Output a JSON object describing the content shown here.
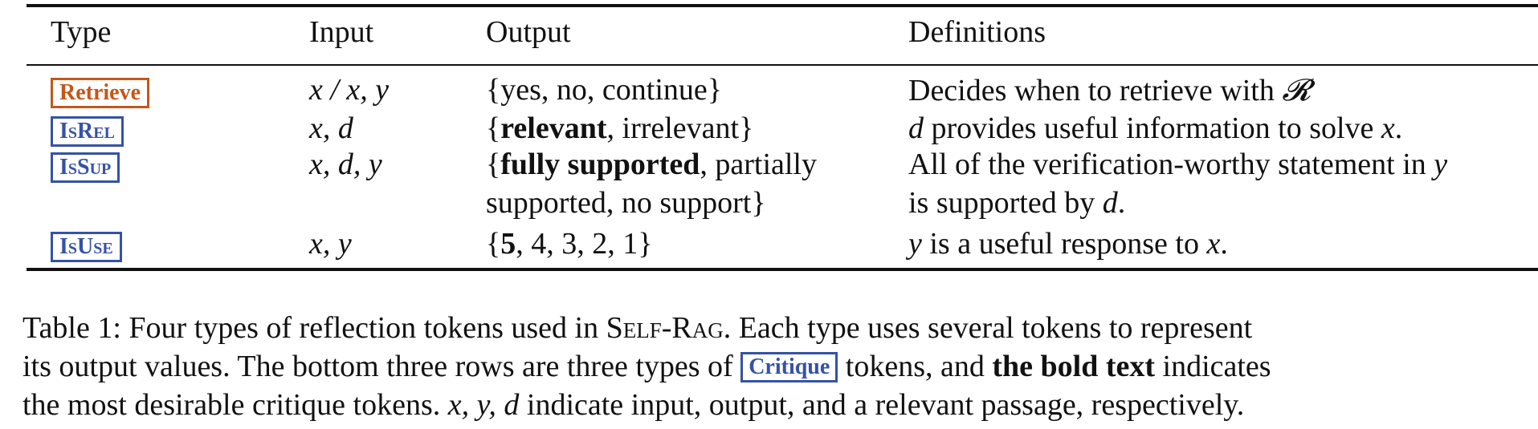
{
  "table": {
    "headers": {
      "type": "Type",
      "input": "Input",
      "output": "Output",
      "definitions": "Definitions"
    },
    "rows": [
      {
        "token": "Retrieve",
        "input": "x / x, y",
        "output": "{yes, no, continue}",
        "definition_pre": "Decides when to retrieve with ",
        "definition_symbol": "𝓡"
      },
      {
        "token": "IsRel",
        "input": "x, d",
        "output_pre": "{",
        "output_bold": "relevant",
        "output_post": ", irrelevant}",
        "definition_var": "d",
        "definition_mid": " provides useful information to solve ",
        "definition_var2": "x",
        "definition_end": "."
      },
      {
        "token": "IsSup",
        "input": "x, d, y",
        "output_pre": "{",
        "output_bold": "fully supported",
        "output_post": ", partially",
        "output_line2": "supported, no support}",
        "definition_line1": "All of the verification-worthy statement in ",
        "definition_var": "y",
        "definition_line2": "is supported by ",
        "definition_var2": "d",
        "definition_end": "."
      },
      {
        "token": "IsUse",
        "input": "x, y",
        "output_pre": "{",
        "output_bold": "5",
        "output_post": ", 4, 3, 2, 1}",
        "definition_var": "y",
        "definition_mid": " is a useful response to ",
        "definition_var2": "x",
        "definition_end": "."
      }
    ]
  },
  "caption": {
    "l1_pre": "Table 1: Four types of reflection tokens used in ",
    "l1_name": "Self-Rag",
    "l1_post": ". Each type uses several tokens to represent",
    "l2_pre": "its output values. The bottom three rows are three types of ",
    "l2_token": "Critique",
    "l2_mid": " tokens, and ",
    "l2_bold": "the bold text",
    "l2_post": " indicates",
    "l3_pre": "the most desirable critique tokens. ",
    "l3_vars": "x, y, d",
    "l3_post": " indicate input, output, and a relevant passage, respectively."
  },
  "colors": {
    "retrieve": "#c2581a",
    "critique": "#3553a4",
    "text": "#111111"
  }
}
